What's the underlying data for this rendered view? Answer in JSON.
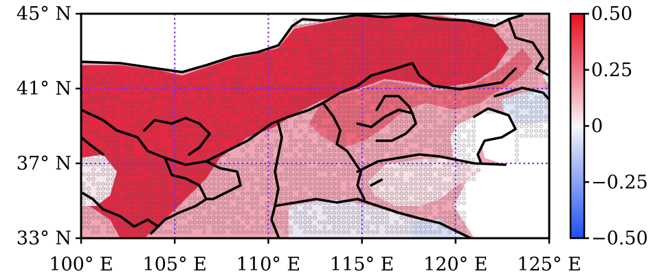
{
  "map": {
    "lon_range": [
      100,
      125
    ],
    "lat_range": [
      33,
      45
    ],
    "x_ticks": [
      {
        "value": 100,
        "label": "100° E"
      },
      {
        "value": 105,
        "label": "105° E"
      },
      {
        "value": 110,
        "label": "110° E"
      },
      {
        "value": 115,
        "label": "115° E"
      },
      {
        "value": 120,
        "label": "120° E"
      },
      {
        "value": 125,
        "label": "125° E"
      }
    ],
    "y_ticks": [
      {
        "value": 33,
        "label": "33° N"
      },
      {
        "value": 37,
        "label": "37° N"
      },
      {
        "value": 41,
        "label": "41° N"
      },
      {
        "value": 45,
        "label": "45° N"
      }
    ],
    "gridlines": {
      "lons": [
        105,
        110,
        115,
        120
      ],
      "lats": [
        37,
        41
      ],
      "style": "dotted",
      "color": "#7b2cf0"
    },
    "stippling": "open circles mark grid cells of significance"
  },
  "colorbar": {
    "min": -0.5,
    "max": 0.5,
    "colors": {
      "low": "#1f4ff0",
      "mid": "#f8f6f7",
      "high": "#e8101c"
    },
    "ticks": [
      {
        "value": 0.5,
        "label": "0.50"
      },
      {
        "value": 0.25,
        "label": "0.25"
      },
      {
        "value": 0,
        "label": "0"
      },
      {
        "value": -0.25,
        "label": "−0.25"
      },
      {
        "value": -0.5,
        "label": "−0.50"
      }
    ]
  }
}
